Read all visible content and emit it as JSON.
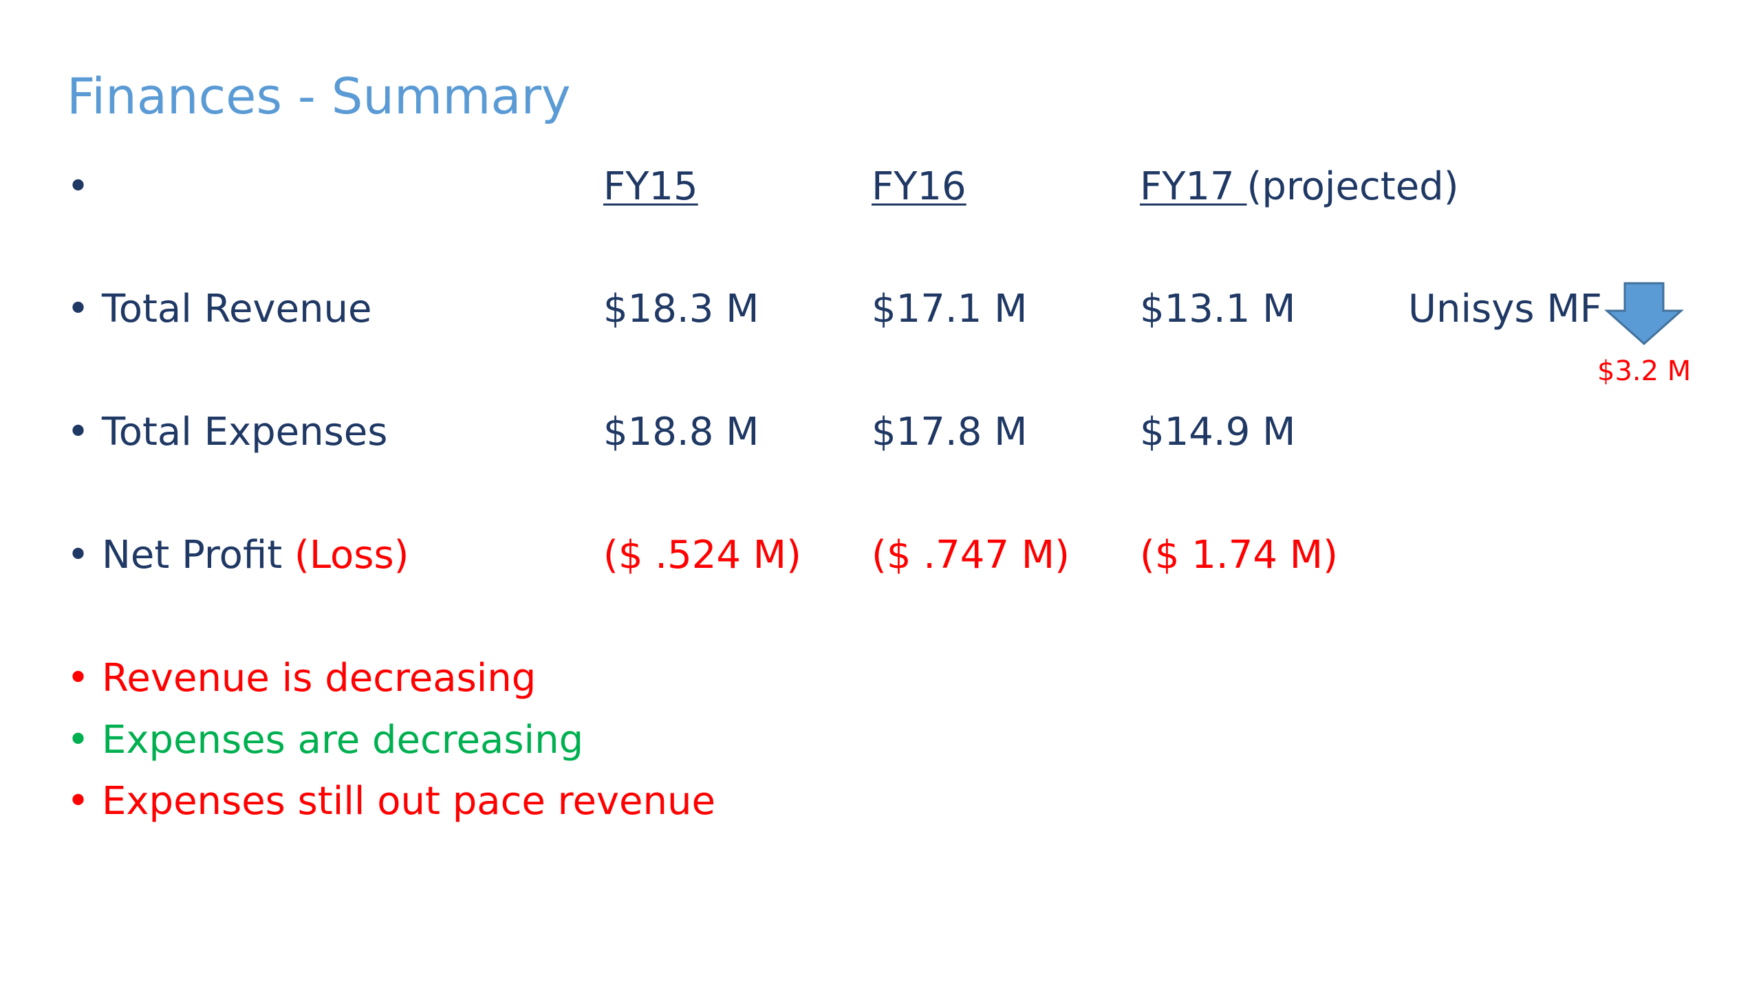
{
  "slide": {
    "title": "Finances - Summary",
    "header_row": {
      "bullet": "•",
      "fy15": "FY15",
      "fy16": "FY16",
      "fy17": "FY17 ",
      "fy17_note": "(projected)"
    },
    "rows": [
      {
        "bullet": "•",
        "label": "Total Revenue",
        "fy15": "$18.3 M",
        "fy16": "$17.1 M",
        "fy17": "$13.1 M"
      },
      {
        "bullet": "•",
        "label": "Total Expenses",
        "fy15": "$18.8 M",
        "fy16": "$17.8 M",
        "fy17": "$14.9 M"
      },
      {
        "bullet": "•",
        "label": "Net Profit",
        "label_suffix": "(Loss)",
        "fy15": "($ .524 M)",
        "fy16": "($ .747 M)",
        "fy17": "($ 1.74 M)"
      }
    ],
    "callout": {
      "label": "Unisys MF",
      "icon": "down-arrow-icon",
      "amount": "$3.2 M"
    },
    "notes": [
      {
        "bullet": "•",
        "text": "Revenue is decreasing",
        "color": "#ff0000"
      },
      {
        "bullet": "•",
        "text": "Expenses are decreasing",
        "color": "#00b050"
      },
      {
        "bullet": "•",
        "text": "Expenses still out pace revenue",
        "color": "#ff0000"
      }
    ],
    "colors": {
      "title": "#5b9bd5",
      "body": "#1f3864",
      "negative": "#ff0000",
      "positive": "#00b050",
      "arrow": "#5b9bd5"
    }
  }
}
